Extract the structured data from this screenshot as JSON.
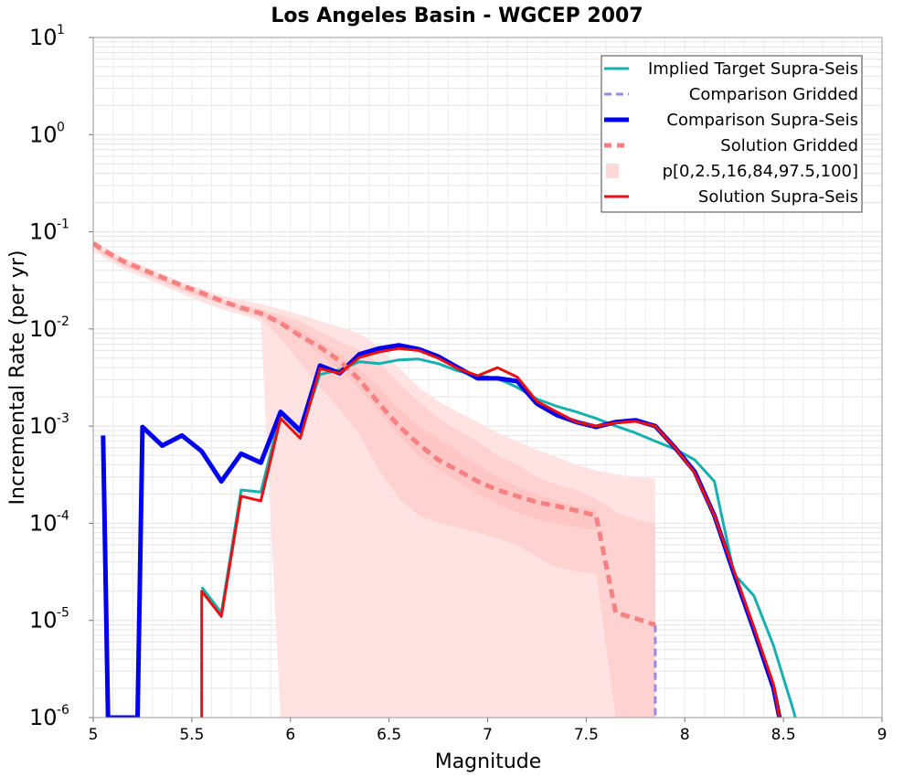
{
  "chart_data": {
    "type": "line",
    "title": "Los Angeles Basin - WGCEP 2007",
    "xlabel": "Magnitude",
    "ylabel": "Incremental Rate (per yr)",
    "xlim": [
      5,
      9
    ],
    "ylim": [
      1e-06,
      10
    ],
    "yscale": "log",
    "grid": true,
    "legend_position": "top-right",
    "xticks": [
      "5",
      "5.5",
      "6",
      "6.5",
      "7",
      "7.5",
      "8",
      "8.5",
      "9"
    ],
    "yticks": [
      {
        "base": "10",
        "exp": "1"
      },
      {
        "base": "10",
        "exp": "0"
      },
      {
        "base": "10",
        "exp": "-1"
      },
      {
        "base": "10",
        "exp": "-2"
      },
      {
        "base": "10",
        "exp": "-3"
      },
      {
        "base": "10",
        "exp": "-4"
      },
      {
        "base": "10",
        "exp": "-5"
      },
      {
        "base": "10",
        "exp": "-6"
      }
    ],
    "bands": [
      {
        "name": "p[0,2.5,16,84,97.5,100] outer",
        "color": "#ffe3e3",
        "x": [
          5.0,
          5.05,
          5.15,
          5.25,
          5.35,
          5.45,
          5.55,
          5.65,
          5.75,
          5.85,
          5.95,
          6.05,
          6.15,
          6.25,
          6.35,
          6.45,
          6.55,
          6.65,
          6.75,
          6.85,
          6.95,
          7.05,
          7.15,
          7.25,
          7.35,
          7.45,
          7.55,
          7.65,
          7.75,
          7.85
        ],
        "upper": [
          0.085,
          0.07,
          0.055,
          0.045,
          0.037,
          0.03,
          0.026,
          0.022,
          0.02,
          0.018,
          0.016,
          0.014,
          0.012,
          0.0105,
          0.009,
          0.0065,
          0.004,
          0.0025,
          0.0018,
          0.0014,
          0.0011,
          0.00085,
          0.0007,
          0.00057,
          0.00048,
          0.0004,
          0.00035,
          0.00032,
          0.0003,
          0.00029
        ],
        "lower": [
          0.065,
          0.055,
          0.042,
          0.034,
          0.028,
          0.023,
          0.019,
          0.016,
          0.014,
          0.012,
          1e-06,
          1e-06,
          1e-06,
          1e-06,
          1e-06,
          1e-06,
          1e-06,
          1e-06,
          1e-06,
          1e-06,
          1e-06,
          1e-06,
          1e-06,
          1e-06,
          1e-06,
          1e-06,
          1e-06,
          1e-06,
          1e-06,
          1e-06
        ]
      },
      {
        "name": "p[0,2.5,16,84,97.5,100] mid",
        "color": "#ffd2d2",
        "x": [
          5.0,
          5.05,
          5.15,
          5.25,
          5.35,
          5.45,
          5.55,
          5.65,
          5.75,
          5.85,
          5.95,
          6.05,
          6.15,
          6.25,
          6.35,
          6.45,
          6.55,
          6.65,
          6.75,
          6.85,
          6.95,
          7.05,
          7.15,
          7.25,
          7.35,
          7.45,
          7.55,
          7.65,
          7.75,
          7.85
        ],
        "upper": [
          0.08,
          0.065,
          0.05,
          0.041,
          0.034,
          0.028,
          0.024,
          0.02,
          0.018,
          0.016,
          0.014,
          0.012,
          0.0095,
          0.0075,
          0.006,
          0.0045,
          0.0028,
          0.0018,
          0.0012,
          0.0009,
          0.0007,
          0.0005,
          0.0004,
          0.0003,
          0.00025,
          0.00022,
          0.00018,
          0.00013,
          0.00011,
          0.0001
        ],
        "lower": [
          0.07,
          0.058,
          0.045,
          0.037,
          0.03,
          0.025,
          0.021,
          0.018,
          0.015,
          0.013,
          0.008,
          0.0045,
          0.0025,
          0.0015,
          0.0008,
          0.00035,
          0.00018,
          0.00012,
          0.0001,
          9e-05,
          8e-05,
          7e-05,
          6e-05,
          4.5e-05,
          3.5e-05,
          3.2e-05,
          3e-05,
          1e-06,
          1e-06,
          1e-06
        ]
      },
      {
        "name": "p[0,2.5,16,84,97.5,100] inner",
        "color": "#ffc6c6",
        "x": [
          5.0,
          5.05,
          5.15,
          5.25,
          5.35,
          5.45,
          5.55,
          5.65,
          5.75,
          5.85,
          5.95,
          6.05,
          6.15,
          6.25,
          6.35,
          6.45,
          6.55,
          6.65,
          6.75,
          6.85,
          6.95,
          7.05,
          7.15,
          7.25,
          7.35,
          7.45,
          7.55
        ],
        "upper": [
          0.077,
          0.063,
          0.048,
          0.039,
          0.032,
          0.026,
          0.0225,
          0.019,
          0.017,
          0.015,
          0.013,
          0.01,
          0.0075,
          0.0055,
          0.0038,
          0.0025,
          0.0015,
          0.001,
          0.00075,
          0.00055,
          0.0004,
          0.0003,
          0.00024,
          0.0002,
          0.00017,
          0.00015,
          0.00014
        ],
        "lower": [
          0.073,
          0.06,
          0.046,
          0.038,
          0.031,
          0.025,
          0.0215,
          0.0185,
          0.016,
          0.014,
          0.011,
          0.008,
          0.0055,
          0.0038,
          0.0024,
          0.0014,
          0.0008,
          0.0005,
          0.00035,
          0.00027,
          0.0002,
          0.00016,
          0.00013,
          0.00011,
          0.0001,
          9e-05,
          8.5e-05
        ]
      }
    ],
    "series": [
      {
        "name": "Implied Target Supra-Seis",
        "color": "#17b0b0",
        "dash": "none",
        "width": 3,
        "x": [
          5.55,
          5.65,
          5.75,
          5.85,
          5.95,
          6.05,
          6.15,
          6.25,
          6.35,
          6.45,
          6.55,
          6.65,
          6.75,
          6.85,
          6.95,
          7.05,
          7.15,
          7.25,
          7.35,
          7.45,
          7.55,
          7.65,
          7.75,
          7.85,
          7.95,
          8.05,
          8.15,
          8.25,
          8.35,
          8.45,
          8.55,
          8.56
        ],
        "y": [
          2.2e-05,
          1.2e-05,
          0.00022,
          0.00021,
          0.00135,
          0.00085,
          0.0034,
          0.0038,
          0.0046,
          0.0044,
          0.0048,
          0.0049,
          0.0044,
          0.0037,
          0.0033,
          0.0031,
          0.0025,
          0.0019,
          0.0016,
          0.0014,
          0.0012,
          0.001,
          0.00085,
          0.0007,
          0.00058,
          0.00045,
          0.00027,
          3e-05,
          1.8e-05,
          5.5e-06,
          1.2e-06,
          1e-06
        ]
      },
      {
        "name": "Comparison Gridded",
        "color": "#9a86ee",
        "dash": "8,5",
        "width": 3,
        "x": [
          7.85,
          7.85
        ],
        "y": [
          9e-06,
          1e-06
        ]
      },
      {
        "name": "Comparison Supra-Seis",
        "color": "#0000ee",
        "dash": "none",
        "width": 5,
        "x": [
          5.05,
          5.075,
          5.225,
          5.25,
          5.35,
          5.45,
          5.55,
          5.65,
          5.75,
          5.85,
          5.95,
          6.05,
          6.15,
          6.25,
          6.35,
          6.45,
          6.55,
          6.65,
          6.75,
          6.85,
          6.95,
          7.05,
          7.15,
          7.25,
          7.35,
          7.45,
          7.55,
          7.65,
          7.75,
          7.85,
          7.95,
          8.05,
          8.15,
          8.25,
          8.35,
          8.45,
          8.48
        ],
        "y": [
          0.0008,
          1e-06,
          1e-06,
          0.00098,
          0.00063,
          0.0008,
          0.00055,
          0.00027,
          0.00052,
          0.00042,
          0.0014,
          0.0009,
          0.0042,
          0.0035,
          0.0055,
          0.0063,
          0.0068,
          0.0062,
          0.0052,
          0.004,
          0.0031,
          0.0031,
          0.0029,
          0.0017,
          0.0013,
          0.0011,
          0.00098,
          0.0011,
          0.00115,
          0.001,
          0.0006,
          0.00034,
          0.00012,
          3e-05,
          8e-06,
          2e-06,
          1e-06
        ]
      },
      {
        "name": "Solution Gridded",
        "color": "#f78080",
        "dash": "10,6",
        "width": 5,
        "x": [
          5.0,
          5.05,
          5.15,
          5.25,
          5.35,
          5.45,
          5.55,
          5.65,
          5.75,
          5.85,
          5.95,
          6.05,
          6.15,
          6.25,
          6.35,
          6.45,
          6.55,
          6.65,
          6.75,
          6.85,
          6.95,
          7.05,
          7.15,
          7.25,
          7.35,
          7.45,
          7.55,
          7.65,
          7.75,
          7.85
        ],
        "y": [
          0.076,
          0.065,
          0.05,
          0.041,
          0.034,
          0.028,
          0.0235,
          0.0195,
          0.0165,
          0.0145,
          0.0115,
          0.0085,
          0.0065,
          0.0047,
          0.003,
          0.0017,
          0.001,
          0.00065,
          0.00045,
          0.00035,
          0.00027,
          0.00022,
          0.00019,
          0.000165,
          0.00015,
          0.000135,
          0.00012,
          1.2e-05,
          1.05e-05,
          9e-06
        ]
      },
      {
        "name": "Solution Supra-Seis",
        "color": "#e81010",
        "dash": "none",
        "width": 3,
        "x": [
          5.55,
          5.55,
          5.65,
          5.75,
          5.85,
          5.95,
          6.05,
          6.15,
          6.25,
          6.35,
          6.45,
          6.55,
          6.65,
          6.75,
          6.85,
          6.95,
          7.05,
          7.15,
          7.25,
          7.35,
          7.45,
          7.55,
          7.65,
          7.75,
          7.85,
          7.95,
          8.05,
          8.15,
          8.25,
          8.35,
          8.45,
          8.48
        ],
        "y": [
          1e-06,
          2e-05,
          1.1e-05,
          0.00019,
          0.00017,
          0.0012,
          0.00075,
          0.0039,
          0.0035,
          0.0051,
          0.0058,
          0.0063,
          0.006,
          0.005,
          0.0039,
          0.0033,
          0.004,
          0.0032,
          0.0018,
          0.0014,
          0.0011,
          0.001,
          0.00108,
          0.00112,
          0.001,
          0.0006,
          0.00033,
          0.00012,
          3.2e-05,
          8.5e-06,
          2.2e-06,
          1e-06
        ]
      }
    ],
    "legend": [
      {
        "label": "Implied Target Supra-Seis",
        "color": "#17b0b0",
        "style": "line",
        "width": 3,
        "dash": "none"
      },
      {
        "label": "Comparison Gridded",
        "color": "#9a86ee",
        "style": "line",
        "width": 3,
        "dash": "8,5"
      },
      {
        "label": "Comparison Supra-Seis",
        "color": "#0000ee",
        "style": "line",
        "width": 5,
        "dash": "none"
      },
      {
        "label": "Solution Gridded",
        "color": "#f78080",
        "style": "line",
        "width": 5,
        "dash": "8,6"
      },
      {
        "label": "p[0,2.5,16,84,97.5,100]",
        "color": "#ffd9d9",
        "style": "box",
        "width": 0,
        "dash": "none"
      },
      {
        "label": "Solution Supra-Seis",
        "color": "#e81010",
        "style": "line",
        "width": 3,
        "dash": "none"
      }
    ]
  }
}
